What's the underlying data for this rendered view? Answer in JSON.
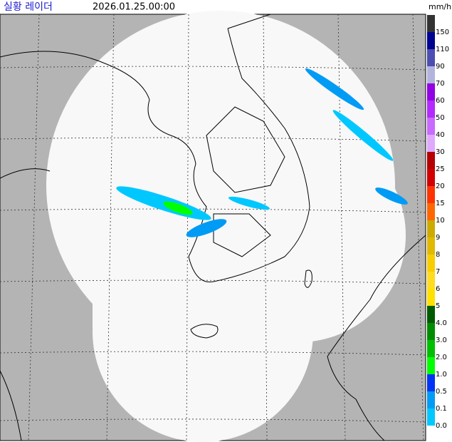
{
  "header": {
    "title": "실황 레이더",
    "timestamp": "2026.01.25.00:00",
    "unit": "mm/h"
  },
  "legend": [
    {
      "label": "150",
      "color": "#333333"
    },
    {
      "label": "110",
      "color": "#000390"
    },
    {
      "label": "90",
      "color": "#4c4eb1"
    },
    {
      "label": "70",
      "color": "#b3b4de"
    },
    {
      "label": "60",
      "color": "#9300e4"
    },
    {
      "label": "50",
      "color": "#b329ff"
    },
    {
      "label": "40",
      "color": "#c969ff"
    },
    {
      "label": "30",
      "color": "#dfa9ff"
    },
    {
      "label": "25",
      "color": "#b40000"
    },
    {
      "label": "20",
      "color": "#d20000"
    },
    {
      "label": "15",
      "color": "#ff3300"
    },
    {
      "label": "10",
      "color": "#ff6600"
    },
    {
      "label": "9",
      "color": "#ccaa00"
    },
    {
      "label": "8",
      "color": "#e0b900"
    },
    {
      "label": "7",
      "color": "#f9cd00"
    },
    {
      "label": "6",
      "color": "#ffdc1f"
    },
    {
      "label": "5",
      "color": "#ffe100"
    },
    {
      "label": "4.0",
      "color": "#005a00"
    },
    {
      "label": "3.0",
      "color": "#008c00"
    },
    {
      "label": "2.0",
      "color": "#00be00"
    },
    {
      "label": "1.0",
      "color": "#00ff00"
    },
    {
      "label": "0.5",
      "color": "#0033f5"
    },
    {
      "label": "0.1",
      "color": "#009bf5"
    },
    {
      "label": "0.0",
      "color": "#00c8ff"
    }
  ]
}
